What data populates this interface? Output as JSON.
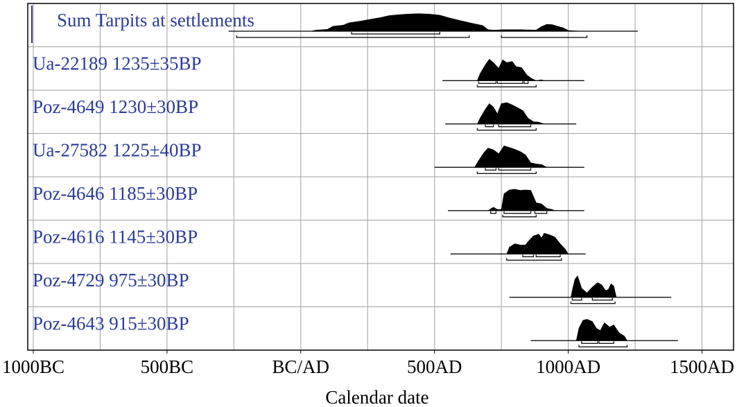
{
  "chart_data": {
    "type": "area",
    "xlabel": "Calendar date",
    "xlim": [
      -1000,
      1600
    ],
    "grid": true,
    "x_ticks": [
      {
        "value": -1000,
        "label": "1000BC"
      },
      {
        "value": -500,
        "label": "500BC"
      },
      {
        "value": 0,
        "label": "BC/AD"
      },
      {
        "value": 500,
        "label": "500AD"
      },
      {
        "value": 1000,
        "label": "1000AD"
      },
      {
        "value": 1500,
        "label": "1500AD"
      }
    ],
    "rows": [
      {
        "label": "Sum Tarpits at settlements",
        "range": [
          -270,
          1260
        ],
        "dist": [
          [
            -270,
            0
          ],
          [
            40,
            0
          ],
          [
            50,
            0.04
          ],
          [
            60,
            0.06
          ],
          [
            100,
            0.1
          ],
          [
            120,
            0.26
          ],
          [
            160,
            0.32
          ],
          [
            180,
            0.44
          ],
          [
            220,
            0.52
          ],
          [
            260,
            0.62
          ],
          [
            300,
            0.72
          ],
          [
            330,
            0.82
          ],
          [
            360,
            0.86
          ],
          [
            400,
            0.9
          ],
          [
            440,
            0.92
          ],
          [
            480,
            0.9
          ],
          [
            520,
            0.84
          ],
          [
            560,
            0.68
          ],
          [
            600,
            0.54
          ],
          [
            640,
            0.42
          ],
          [
            680,
            0.3
          ],
          [
            700,
            0.08
          ],
          [
            720,
            0.06
          ],
          [
            760,
            0.08
          ],
          [
            820,
            0.08
          ],
          [
            880,
            0.06
          ],
          [
            900,
            0.24
          ],
          [
            920,
            0.36
          ],
          [
            940,
            0.34
          ],
          [
            960,
            0.26
          ],
          [
            980,
            0.18
          ],
          [
            1000,
            0.04
          ],
          [
            1050,
            0
          ],
          [
            1260,
            0
          ]
        ],
        "bars": [
          [
            -240,
            630
          ],
          [
            750,
            1070
          ]
        ],
        "bars2": [
          [
            190,
            520
          ]
        ]
      },
      {
        "label": "Ua-22189  1235±35BP",
        "range": [
          530,
          1060
        ],
        "dist": [
          [
            530,
            0
          ],
          [
            660,
            0
          ],
          [
            670,
            0.3
          ],
          [
            690,
            0.7
          ],
          [
            705,
            0.95
          ],
          [
            720,
            0.8
          ],
          [
            740,
            0.55
          ],
          [
            755,
            0.92
          ],
          [
            770,
            0.8
          ],
          [
            790,
            0.85
          ],
          [
            805,
            0.62
          ],
          [
            825,
            0.58
          ],
          [
            845,
            0.25
          ],
          [
            865,
            0.08
          ],
          [
            880,
            0
          ],
          [
            900,
            0.04
          ],
          [
            910,
            0
          ],
          [
            1060,
            0
          ]
        ],
        "bars": [
          [
            660,
            880
          ]
        ],
        "bars2": [
          [
            665,
            730
          ],
          [
            735,
            830
          ],
          [
            835,
            850
          ]
        ]
      },
      {
        "label": "Poz-4649  1230±30BP",
        "range": [
          540,
          1030
        ],
        "dist": [
          [
            540,
            0
          ],
          [
            660,
            0
          ],
          [
            670,
            0.25
          ],
          [
            690,
            0.65
          ],
          [
            705,
            0.9
          ],
          [
            720,
            0.75
          ],
          [
            735,
            0.45
          ],
          [
            750,
            0.9
          ],
          [
            770,
            0.95
          ],
          [
            790,
            0.85
          ],
          [
            810,
            0.72
          ],
          [
            830,
            0.6
          ],
          [
            850,
            0.25
          ],
          [
            870,
            0.1
          ],
          [
            890,
            0.08
          ],
          [
            910,
            0
          ],
          [
            1030,
            0
          ]
        ],
        "bars": [
          [
            660,
            880
          ]
        ],
        "bars2": [
          [
            690,
            720
          ],
          [
            740,
            860
          ]
        ]
      },
      {
        "label": "Ua-27582  1225±40BP",
        "range": [
          500,
          1060
        ],
        "dist": [
          [
            500,
            0
          ],
          [
            650,
            0
          ],
          [
            665,
            0.3
          ],
          [
            685,
            0.65
          ],
          [
            700,
            0.85
          ],
          [
            720,
            0.78
          ],
          [
            740,
            0.6
          ],
          [
            760,
            0.95
          ],
          [
            780,
            0.88
          ],
          [
            800,
            0.8
          ],
          [
            820,
            0.7
          ],
          [
            840,
            0.55
          ],
          [
            860,
            0.2
          ],
          [
            880,
            0.15
          ],
          [
            900,
            0.12
          ],
          [
            920,
            0
          ],
          [
            1060,
            0
          ]
        ],
        "bars": [
          [
            660,
            880
          ]
        ],
        "bars2": [
          [
            690,
            730
          ],
          [
            740,
            860
          ]
        ]
      },
      {
        "label": "Poz-4646  1185±30BP",
        "range": [
          550,
          1060
        ],
        "dist": [
          [
            550,
            0
          ],
          [
            700,
            0
          ],
          [
            720,
            0.15
          ],
          [
            735,
            0.05
          ],
          [
            750,
            0.05
          ],
          [
            760,
            0.75
          ],
          [
            780,
            0.92
          ],
          [
            800,
            0.95
          ],
          [
            820,
            0.9
          ],
          [
            840,
            0.92
          ],
          [
            860,
            0.9
          ],
          [
            880,
            0.35
          ],
          [
            900,
            0.3
          ],
          [
            920,
            0.1
          ],
          [
            940,
            0.05
          ],
          [
            950,
            0
          ],
          [
            1060,
            0
          ]
        ],
        "bars": [
          [
            755,
            880
          ]
        ],
        "bars2": [
          [
            710,
            730
          ],
          [
            760,
            860
          ],
          [
            875,
            920
          ]
        ]
      },
      {
        "label": "Poz-4616  1145±30BP",
        "range": [
          560,
          1065
        ],
        "dist": [
          [
            560,
            0
          ],
          [
            770,
            0
          ],
          [
            780,
            0.3
          ],
          [
            800,
            0.45
          ],
          [
            820,
            0.4
          ],
          [
            840,
            0.4
          ],
          [
            850,
            0.55
          ],
          [
            870,
            0.8
          ],
          [
            890,
            0.88
          ],
          [
            900,
            0.7
          ],
          [
            910,
            0.92
          ],
          [
            930,
            0.85
          ],
          [
            950,
            0.75
          ],
          [
            970,
            0.45
          ],
          [
            990,
            0.2
          ],
          [
            1000,
            0
          ],
          [
            1065,
            0
          ]
        ],
        "bars": [
          [
            770,
            975
          ]
        ],
        "bars2": [
          [
            830,
            870
          ],
          [
            880,
            970
          ]
        ]
      },
      {
        "label": "Poz-4729  975±30BP",
        "range": [
          780,
          1385
        ],
        "dist": [
          [
            780,
            0
          ],
          [
            1010,
            0
          ],
          [
            1015,
            0.3
          ],
          [
            1025,
            0.8
          ],
          [
            1035,
            0.95
          ],
          [
            1050,
            0.4
          ],
          [
            1070,
            0.2
          ],
          [
            1090,
            0.45
          ],
          [
            1110,
            0.65
          ],
          [
            1125,
            0.55
          ],
          [
            1140,
            0.3
          ],
          [
            1150,
            0.35
          ],
          [
            1160,
            0.6
          ],
          [
            1170,
            0.5
          ],
          [
            1180,
            0
          ],
          [
            1385,
            0
          ]
        ],
        "bars": [
          [
            1010,
            1175
          ]
        ],
        "bars2": [
          [
            1015,
            1050
          ],
          [
            1090,
            1165
          ]
        ]
      },
      {
        "label": "Poz-4643  915±30BP",
        "range": [
          860,
          1410
        ],
        "dist": [
          [
            860,
            0
          ],
          [
            1030,
            0
          ],
          [
            1040,
            0.55
          ],
          [
            1055,
            0.9
          ],
          [
            1070,
            0.95
          ],
          [
            1090,
            0.85
          ],
          [
            1105,
            0.55
          ],
          [
            1120,
            0.45
          ],
          [
            1135,
            0.8
          ],
          [
            1155,
            0.6
          ],
          [
            1170,
            0.7
          ],
          [
            1190,
            0.35
          ],
          [
            1210,
            0.2
          ],
          [
            1220,
            0
          ],
          [
            1410,
            0
          ]
        ],
        "bars": [
          [
            1040,
            1220
          ]
        ],
        "bars2": [
          [
            1050,
            1110
          ],
          [
            1115,
            1170
          ]
        ]
      }
    ]
  }
}
